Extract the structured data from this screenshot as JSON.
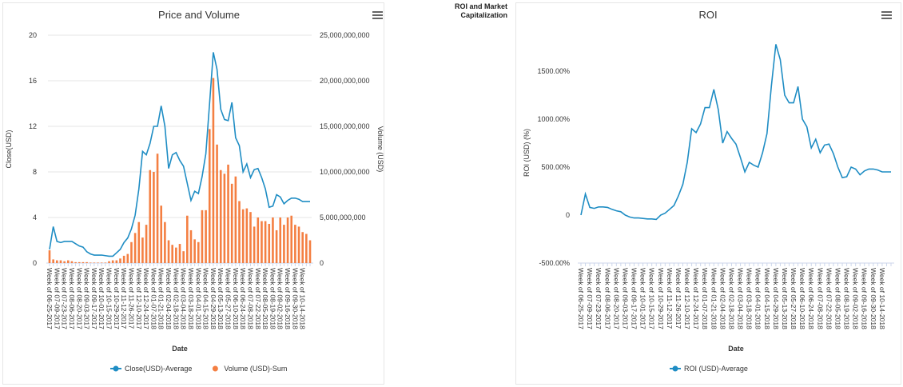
{
  "section_title": "ROI and Market Capitalization",
  "chart_data": [
    {
      "type": "line",
      "title": "Price and Volume",
      "x_label": "Date",
      "y_label": "Close(USD)",
      "y2_label": "Volume (USD)",
      "categories": [
        "Week of 06-25-2017",
        null,
        "Week of 07-09-2017",
        null,
        "Week of 07-23-2017",
        null,
        "Week of 08-06-2017",
        null,
        "Week of 08-20-2017",
        null,
        "Week of 09-03-2017",
        null,
        "Week of 09-17-2017",
        null,
        "Week of 10-01-2017",
        null,
        "Week of 10-15-2017",
        null,
        "Week of 10-29-2017",
        null,
        "Week of 11-12-2017",
        null,
        "Week of 11-26-2017",
        null,
        "Week of 12-10-2017",
        null,
        "Week of 12-24-2017",
        null,
        "Week of 01-07-2018",
        null,
        "Week of 01-21-2018",
        null,
        "Week of 02-04-2018",
        null,
        "Week of 02-18-2018",
        null,
        "Week of 03-04-2018",
        null,
        "Week of 03-18-2018",
        null,
        "Week of 04-01-2018",
        null,
        "Week of 04-15-2018",
        null,
        "Week of 04-29-2018",
        null,
        "Week of 05-13-2018",
        null,
        "Week of 05-27-2018",
        null,
        "Week of 06-10-2018",
        null,
        "Week of 06-24-2018",
        null,
        "Week of 07-08-2018",
        null,
        "Week of 07-22-2018",
        null,
        "Week of 08-05-2018",
        null,
        "Week of 08-19-2018",
        null,
        "Week of 09-02-2018",
        null,
        "Week of 09-16-2018",
        null,
        "Week of 09-30-2018",
        null,
        "Week of 10-14-2018",
        null,
        null
      ],
      "series": [
        {
          "name": "Close(USD)-Average",
          "type": "line",
          "color": "#1f8dc4",
          "values": [
            1.2,
            3.2,
            1.9,
            1.8,
            1.9,
            1.9,
            1.9,
            1.7,
            1.5,
            1.4,
            1.0,
            0.8,
            0.7,
            0.7,
            0.7,
            0.65,
            0.6,
            0.6,
            0.9,
            1.2,
            1.8,
            2.2,
            3.0,
            4.2,
            6.5,
            9.8,
            9.5,
            10.5,
            12.0,
            12.0,
            13.8,
            12.0,
            8.3,
            9.5,
            9.7,
            9.0,
            8.5,
            7.0,
            5.5,
            6.3,
            6.1,
            7.6,
            9.6,
            14.0,
            18.5,
            17.0,
            13.5,
            12.6,
            12.5,
            14.1,
            11.0,
            10.3,
            8.0,
            8.7,
            7.5,
            8.2,
            8.3,
            7.5,
            6.5,
            4.9,
            5.0,
            6.0,
            5.8,
            5.2,
            5.5,
            5.7,
            5.7,
            5.6,
            5.4,
            5.4,
            5.4
          ]
        },
        {
          "name": "Volume (USD)-Sum",
          "type": "bar",
          "axis": "y2",
          "color": "#f47f42",
          "values": [
            1400000000,
            400000000,
            300000000,
            300000000,
            200000000,
            300000000,
            200000000,
            100000000,
            100000000,
            100000000,
            100000000,
            50000000,
            50000000,
            50000000,
            50000000,
            50000000,
            200000000,
            300000000,
            300000000,
            500000000,
            800000000,
            1000000000,
            2300000000,
            3300000000,
            4500000000,
            2800000000,
            4200000000,
            10200000000,
            10000000000,
            12000000000,
            6300000000,
            4500000000,
            2500000000,
            2000000000,
            1700000000,
            2100000000,
            1300000000,
            5200000000,
            3600000000,
            2600000000,
            2300000000,
            5800000000,
            5800000000,
            14700000000,
            20300000000,
            13000000000,
            10200000000,
            9800000000,
            10800000000,
            8700000000,
            9500000000,
            6800000000,
            5900000000,
            6000000000,
            5600000000,
            4000000000,
            5000000000,
            4600000000,
            4600000000,
            4300000000,
            5000000000,
            3600000000,
            5000000000,
            4200000000,
            5000000000,
            5200000000,
            4200000000,
            4000000000,
            3400000000,
            3200000000,
            2500000000
          ]
        }
      ],
      "ylim": [
        0,
        20
      ],
      "yticks": [
        0,
        4,
        8,
        12,
        16,
        20
      ],
      "y2lim": [
        0,
        25000000000
      ],
      "y2ticks": [
        0,
        {
          "value": 5000000000,
          "label": "5,000,000,000"
        },
        {
          "value": 10000000000,
          "label": "10,000,000,000"
        },
        {
          "value": 15000000000,
          "label": "15,000,000,000"
        },
        {
          "value": 20000000000,
          "label": "20,000,000,000"
        },
        {
          "value": 25000000000,
          "label": "25,000,000,000"
        }
      ],
      "grid": true
    },
    {
      "type": "line",
      "title": "ROI",
      "x_label": "Date",
      "y_label": "ROI (USD) (%)",
      "categories": [
        "Week of 06-25-2017",
        null,
        "Week of 07-09-2017",
        null,
        "Week of 07-23-2017",
        null,
        "Week of 08-06-2017",
        null,
        "Week of 08-20-2017",
        null,
        "Week of 09-03-2017",
        null,
        "Week of 09-17-2017",
        null,
        "Week of 10-01-2017",
        null,
        "Week of 10-15-2017",
        null,
        "Week of 10-29-2017",
        null,
        "Week of 11-12-2017",
        null,
        "Week of 11-26-2017",
        null,
        "Week of 12-10-2017",
        null,
        "Week of 12-24-2017",
        null,
        "Week of 01-07-2018",
        null,
        "Week of 01-21-2018",
        null,
        "Week of 02-04-2018",
        null,
        "Week of 02-18-2018",
        null,
        "Week of 03-04-2018",
        null,
        "Week of 03-18-2018",
        null,
        "Week of 04-01-2018",
        null,
        "Week of 04-15-2018",
        null,
        "Week of 04-29-2018",
        null,
        "Week of 05-13-2018",
        null,
        "Week of 05-27-2018",
        null,
        "Week of 06-10-2018",
        null,
        "Week of 06-24-2018",
        null,
        "Week of 07-08-2018",
        null,
        "Week of 07-22-2018",
        null,
        "Week of 08-05-2018",
        null,
        "Week of 08-19-2018",
        null,
        "Week of 09-02-2018",
        null,
        "Week of 09-16-2018",
        null,
        "Week of 09-30-2018",
        null,
        "Week of 10-14-2018",
        null,
        null
      ],
      "series": [
        {
          "name": "ROI (USD)-Average",
          "type": "line",
          "color": "#1f8dc4",
          "values": [
            0,
            220,
            80,
            70,
            85,
            85,
            80,
            60,
            45,
            35,
            0,
            -20,
            -30,
            -30,
            -35,
            -40,
            -40,
            -45,
            0,
            20,
            60,
            100,
            200,
            320,
            550,
            900,
            860,
            950,
            1120,
            1120,
            1310,
            1100,
            750,
            870,
            800,
            740,
            600,
            450,
            550,
            520,
            500,
            650,
            850,
            1350,
            1780,
            1620,
            1250,
            1170,
            1170,
            1340,
            1000,
            920,
            700,
            790,
            650,
            730,
            740,
            640,
            500,
            390,
            400,
            500,
            480,
            420,
            460,
            480,
            480,
            470,
            450,
            450,
            450
          ]
        }
      ],
      "ylim": [
        -500,
        1800
      ],
      "yticks": [
        {
          "value": -500,
          "label": "-500.00%"
        },
        0,
        {
          "value": 500,
          "label": "500.00%"
        },
        {
          "value": 1000,
          "label": "1000.00%"
        },
        {
          "value": 1500,
          "label": "1500.00%"
        }
      ],
      "grid": false
    }
  ]
}
